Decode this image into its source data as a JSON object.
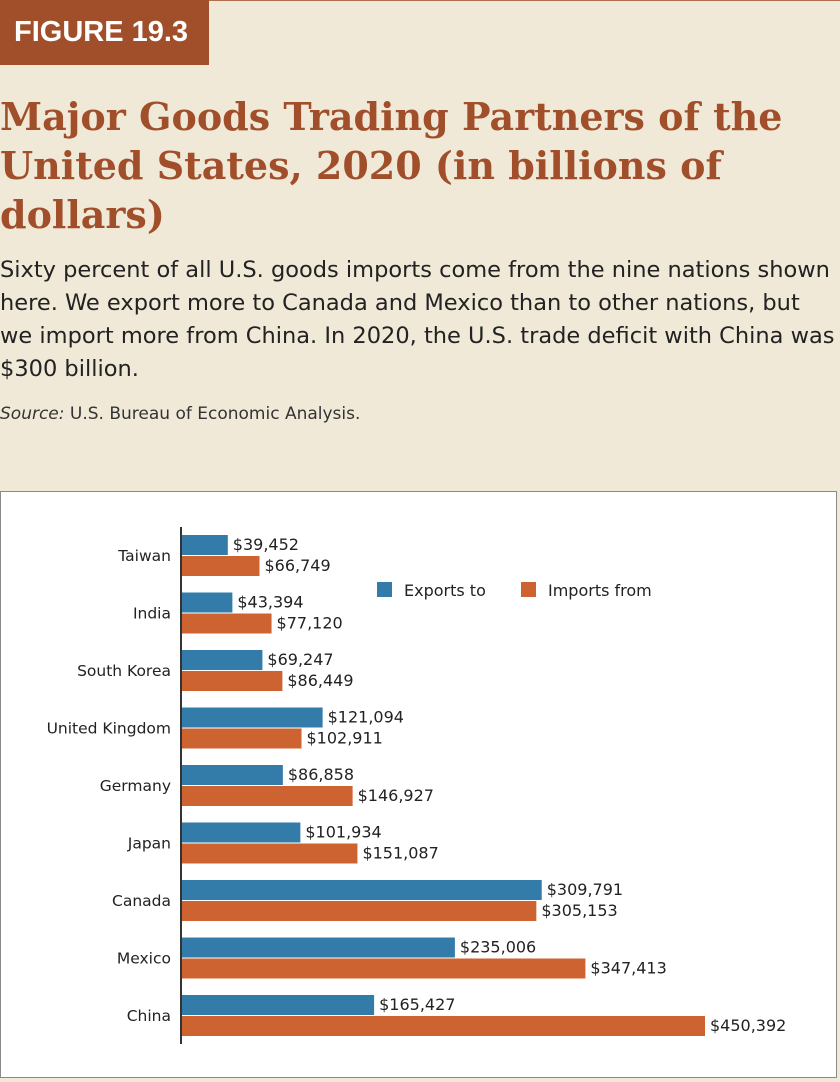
{
  "figure": {
    "label": "FIGURE 19.3",
    "title": "Major Goods Trading Partners of the United States, 2020 (in billions of dollars)",
    "description": "Sixty percent of all U.S. goods imports come from the nine nations shown here. We export more to Canada and Mexico than to other nations, but we import more from China. In 2020, the U.S. trade deficit with China was $300 billion.",
    "source_label": "Source:",
    "source_text": " U.S. Bureau of Economic Analysis."
  },
  "chart_data": {
    "type": "bar",
    "orientation": "horizontal",
    "categories": [
      "Taiwan",
      "India",
      "South Korea",
      "United Kingdom",
      "Germany",
      "Japan",
      "Canada",
      "Mexico",
      "China"
    ],
    "series": [
      {
        "name": "Exports to",
        "color": "#337ba8",
        "values": [
          39452,
          43394,
          69247,
          121094,
          86858,
          101934,
          309791,
          235006,
          165427
        ],
        "labels": [
          "$39,452",
          "$43,394",
          "$69,247",
          "$121,094",
          "$86,858",
          "$101,934",
          "$309,791",
          "$235,006",
          "$165,427"
        ]
      },
      {
        "name": "Imports from",
        "color": "#cc6331",
        "values": [
          66749,
          77120,
          86449,
          102911,
          146927,
          151087,
          305153,
          347413,
          450392
        ],
        "labels": [
          "$66,749",
          "$77,120",
          "$86,449",
          "$102,911",
          "$146,927",
          "$151,087",
          "$305,153",
          "$347,413",
          "$450,392"
        ]
      }
    ],
    "xlim": [
      0,
      450392
    ],
    "legend_position": "top-right",
    "grid": false
  }
}
